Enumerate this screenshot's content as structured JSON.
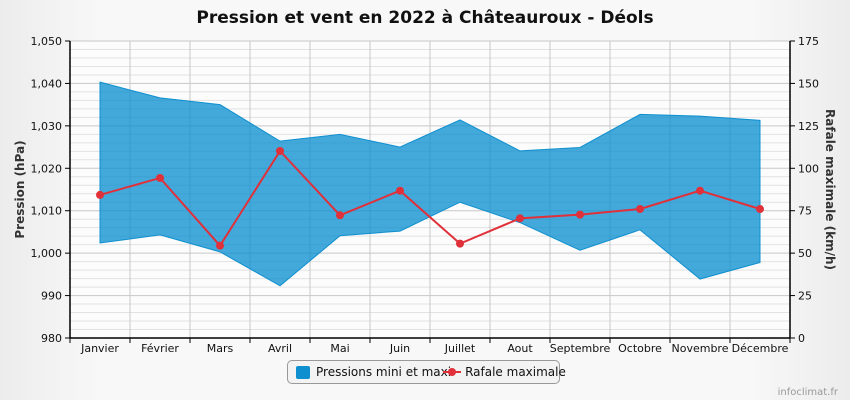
{
  "title": "Pression et vent en 2022 à Châteauroux - Déols",
  "legend": {
    "pressure_label": "Pressions mini et maxi",
    "gust_label": "Rafale maximale"
  },
  "credit": "infoclimat.fr",
  "colors": {
    "pressure_band": "#0e8fcf",
    "gust_line": "#e0303a",
    "grid": "#d4d4d4",
    "axis": "#000000"
  },
  "chart_data": {
    "type": "area",
    "title": "Pression et vent en 2022 à Châteauroux - Déols",
    "categories": [
      "Janvier",
      "Février",
      "Mars",
      "Avril",
      "Mai",
      "Juin",
      "Juillet",
      "Aout",
      "Septembre",
      "Octobre",
      "Novembre",
      "Décembre"
    ],
    "series": [
      {
        "name": "Pressions mini et maxi",
        "type": "arearange",
        "axis": "left",
        "min": [
          1002.4,
          1004.3,
          1000.3,
          992.3,
          1004.1,
          1005.2,
          1012.0,
          1007.2,
          1000.7,
          1005.5,
          993.9,
          997.8
        ],
        "max": [
          1040.3,
          1036.6,
          1035.0,
          1026.4,
          1028.0,
          1025.0,
          1031.4,
          1024.1,
          1024.9,
          1032.7,
          1032.3,
          1031.3
        ]
      },
      {
        "name": "Rafale maximale",
        "type": "line",
        "axis": "right",
        "values": [
          84.3,
          94.3,
          54.4,
          110.2,
          72.3,
          86.8,
          55.6,
          70.5,
          72.7,
          76.0,
          86.8,
          76.0
        ]
      }
    ],
    "ylabel": "Pression (hPa)",
    "ylim": [
      980,
      1050
    ],
    "yticks": [
      "980",
      "990",
      "1,000",
      "1,010",
      "1,020",
      "1,030",
      "1,040",
      "1,050"
    ],
    "y2label": "Rafale maximale (km/h)",
    "y2lim": [
      0,
      175
    ],
    "y2ticks": [
      "0",
      "25",
      "50",
      "75",
      "100",
      "125",
      "150",
      "175"
    ],
    "xlabel": "",
    "grid": true,
    "legend_position": "bottom"
  }
}
